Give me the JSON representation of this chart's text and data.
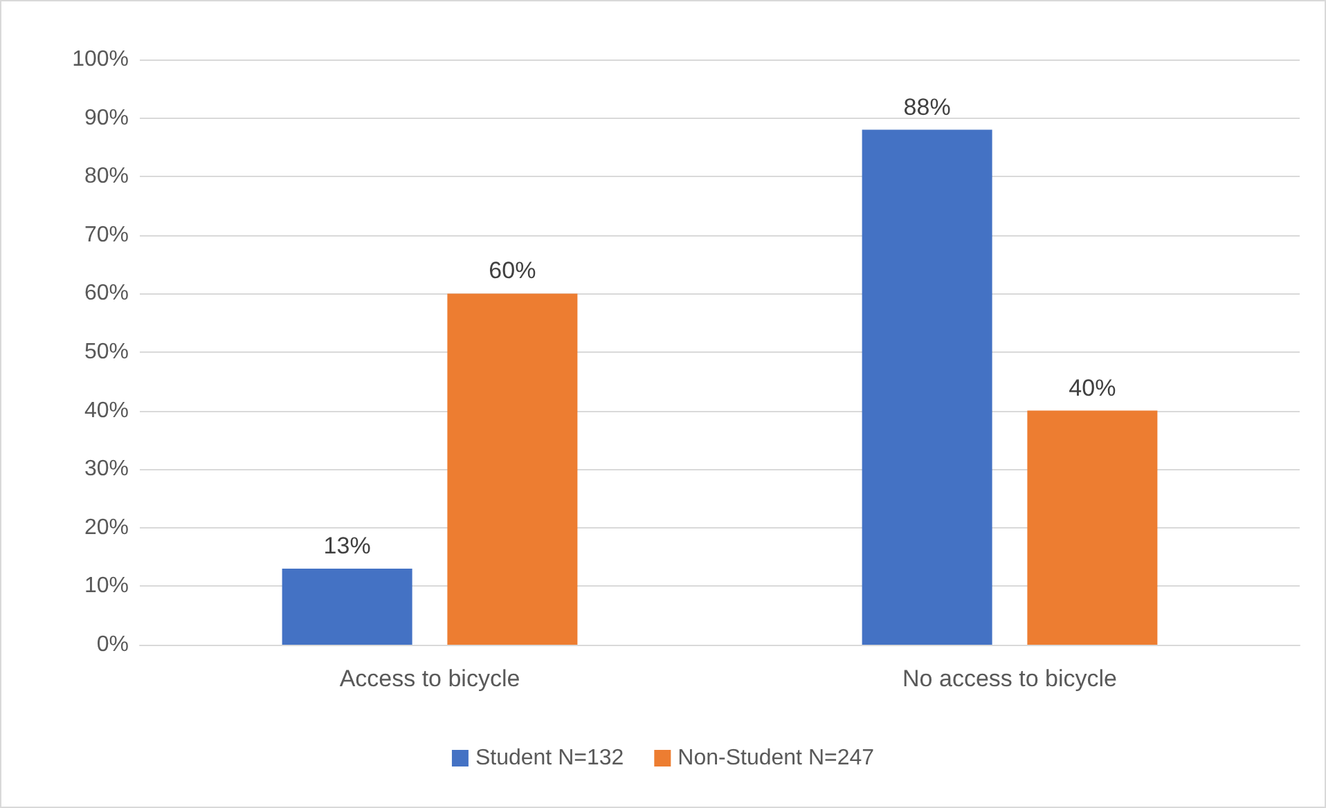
{
  "chart_data": {
    "type": "bar",
    "categories": [
      "Access to bicycle",
      "No access to bicycle"
    ],
    "series": [
      {
        "name": "Student N=132",
        "color": "#4472c4",
        "values": [
          13,
          88
        ],
        "value_labels": [
          "13%",
          "88%"
        ]
      },
      {
        "name": "Non-Student N=247",
        "color": "#ed7d31",
        "values": [
          60,
          40
        ],
        "value_labels": [
          "60%",
          "40%"
        ]
      }
    ],
    "ylim": [
      0,
      100
    ],
    "yticks": [
      {
        "value": 0,
        "label": "0%"
      },
      {
        "value": 10,
        "label": "10%"
      },
      {
        "value": 20,
        "label": "20%"
      },
      {
        "value": 30,
        "label": "30%"
      },
      {
        "value": 40,
        "label": "40%"
      },
      {
        "value": 50,
        "label": "50%"
      },
      {
        "value": 60,
        "label": "60%"
      },
      {
        "value": 70,
        "label": "70%"
      },
      {
        "value": 80,
        "label": "80%"
      },
      {
        "value": 90,
        "label": "90%"
      },
      {
        "value": 100,
        "label": "100%"
      }
    ],
    "grid": "y",
    "legend": "bottom"
  }
}
